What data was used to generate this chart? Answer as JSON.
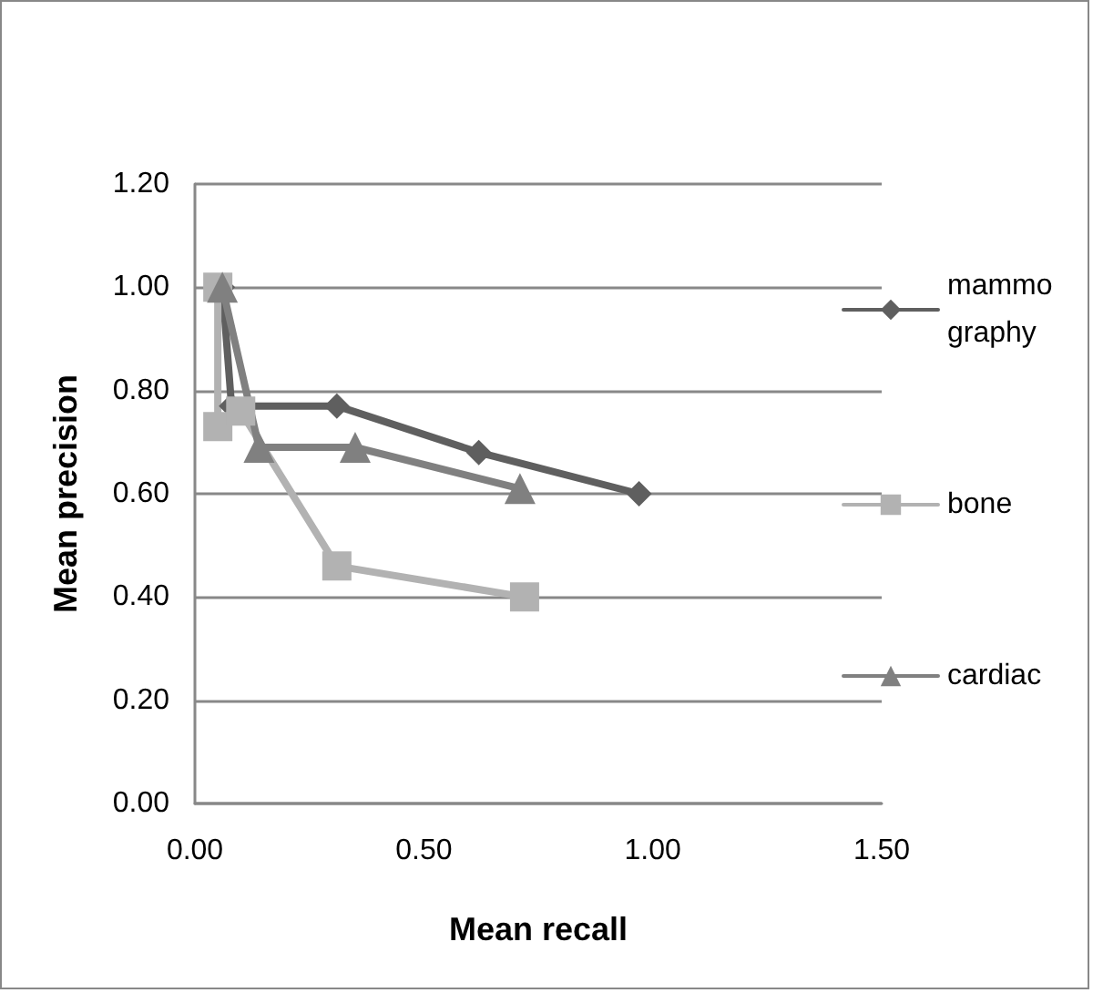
{
  "chart_data": {
    "type": "line",
    "xlabel": "Mean recall",
    "ylabel": "Mean precision",
    "series": [
      {
        "name": "mammography",
        "color": "#5f5f5f",
        "marker": "diamond",
        "x": [
          0.06,
          0.08,
          0.31,
          0.62,
          0.97
        ],
        "values": [
          1.0,
          0.77,
          0.77,
          0.68,
          0.6
        ]
      },
      {
        "name": "bone",
        "color": "#b2b2b2",
        "marker": "square",
        "x": [
          0.05,
          0.05,
          0.1,
          0.31,
          0.72
        ],
        "values": [
          1.0,
          0.73,
          0.76,
          0.46,
          0.4
        ]
      },
      {
        "name": "cardiac",
        "color": "#808080",
        "marker": "triangle",
        "x": [
          0.06,
          0.14,
          0.35,
          0.71
        ],
        "values": [
          1.0,
          0.69,
          0.69,
          0.61
        ]
      }
    ],
    "xlim": [
      0,
      1.5
    ],
    "xticks": [
      {
        "value": 0,
        "label": "0.00"
      },
      {
        "value": 0.5,
        "label": "0.50"
      },
      {
        "value": 1,
        "label": "1.00"
      },
      {
        "value": 1.5,
        "label": "1.50"
      }
    ],
    "ylim": [
      0,
      1.2
    ],
    "yticks": [
      {
        "value": 0,
        "label": "0.00"
      },
      {
        "value": 0.2,
        "label": "0.20"
      },
      {
        "value": 0.4,
        "label": "0.40"
      },
      {
        "value": 0.6,
        "label": "0.60"
      },
      {
        "value": 0.8,
        "label": "0.80"
      },
      {
        "value": 1,
        "label": "1.00"
      },
      {
        "value": 1.2,
        "label": "1.20"
      }
    ],
    "grid": "y",
    "legend": "right"
  }
}
